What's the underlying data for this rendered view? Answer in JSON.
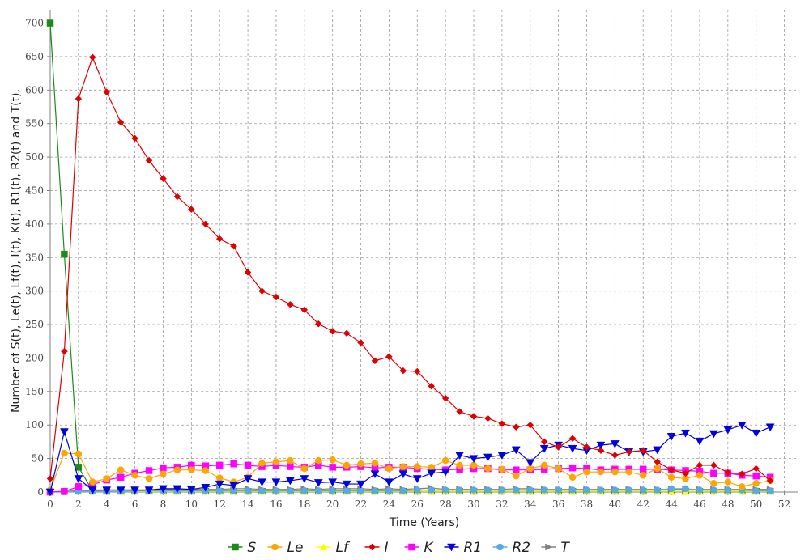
{
  "chart_data": {
    "type": "line",
    "xlabel": "Time (Years)",
    "ylabel": "Number of S(t), Le(t), Lf(t), I(t), K(t), R1(t), R2(t) and T(t),",
    "xlim": [
      0,
      53
    ],
    "ylim": [
      0,
      720
    ],
    "xticks": [
      0,
      2,
      4,
      6,
      8,
      10,
      12,
      14,
      16,
      18,
      20,
      22,
      24,
      26,
      28,
      30,
      32,
      34,
      36,
      38,
      40,
      42,
      44,
      46,
      48,
      50,
      52
    ],
    "yticks": [
      0,
      50,
      100,
      150,
      200,
      250,
      300,
      350,
      400,
      450,
      500,
      550,
      600,
      650,
      700
    ],
    "grid": true,
    "legend": "bottom",
    "x": [
      0,
      1,
      2,
      3,
      4,
      5,
      6,
      7,
      8,
      9,
      10,
      11,
      12,
      13,
      14,
      15,
      16,
      17,
      18,
      19,
      20,
      21,
      22,
      23,
      24,
      25,
      26,
      27,
      28,
      29,
      30,
      31,
      32,
      33,
      34,
      35,
      36,
      37,
      38,
      39,
      40,
      41,
      42,
      43,
      44,
      45,
      46,
      47,
      48,
      49,
      50,
      51
    ],
    "series": [
      {
        "name": "S",
        "color": "#1a8a1a",
        "marker": "square",
        "values": [
          700,
          355,
          37,
          2,
          1,
          1,
          1,
          1,
          1,
          1,
          1,
          1,
          1,
          1,
          1,
          1,
          1,
          1,
          1,
          1,
          1,
          1,
          1,
          1,
          1,
          1,
          1,
          1,
          1,
          1,
          1,
          1,
          1,
          1,
          1,
          1,
          1,
          1,
          1,
          1,
          1,
          1,
          1,
          1,
          1,
          1,
          1,
          1,
          1,
          1,
          1,
          1
        ]
      },
      {
        "name": "Le",
        "color": "#ffa500",
        "marker": "circle",
        "values": [
          3,
          58,
          57,
          15,
          20,
          33,
          25,
          20,
          27,
          33,
          33,
          32,
          21,
          15,
          22,
          43,
          45,
          47,
          35,
          47,
          48,
          40,
          42,
          43,
          35,
          38,
          38,
          37,
          47,
          40,
          40,
          35,
          34,
          24,
          35,
          40,
          35,
          22,
          30,
          30,
          30,
          30,
          25,
          35,
          22,
          20,
          25,
          13,
          15,
          8,
          13,
          17
        ]
      },
      {
        "name": "Lf",
        "color": "#ffff00",
        "marker": "triangle-up",
        "values": [
          0,
          1,
          1,
          1,
          1,
          1,
          1,
          1,
          1,
          1,
          1,
          1,
          1,
          1,
          1,
          1,
          1,
          1,
          1,
          1,
          1,
          1,
          1,
          1,
          1,
          1,
          1,
          1,
          1,
          1,
          1,
          1,
          1,
          1,
          1,
          1,
          1,
          1,
          1,
          1,
          1,
          1,
          1,
          1,
          1,
          1,
          1,
          1,
          1,
          1,
          1,
          1
        ]
      },
      {
        "name": "I",
        "color": "#e00000",
        "marker": "diamond",
        "values": [
          20,
          210,
          587,
          649,
          597,
          552,
          528,
          495,
          468,
          441,
          422,
          400,
          378,
          367,
          328,
          300,
          291,
          280,
          272,
          251,
          240,
          237,
          223,
          196,
          202,
          181,
          180,
          158,
          140,
          120,
          113,
          110,
          102,
          97,
          100,
          75,
          67,
          80,
          67,
          62,
          55,
          60,
          62,
          45,
          33,
          28,
          40,
          40,
          29,
          27,
          35,
          17
        ]
      },
      {
        "name": "K",
        "color": "#ff00ff",
        "marker": "square",
        "values": [
          0,
          1,
          8,
          11,
          18,
          22,
          28,
          32,
          36,
          37,
          40,
          39,
          40,
          42,
          40,
          38,
          40,
          38,
          37,
          40,
          37,
          37,
          38,
          36,
          37,
          37,
          35,
          34,
          33,
          34,
          35,
          35,
          33,
          33,
          33,
          34,
          35,
          36,
          35,
          33,
          34,
          34,
          34,
          34,
          33,
          32,
          31,
          28,
          28,
          25,
          24,
          22
        ]
      },
      {
        "name": "R1",
        "color": "#0000dd",
        "marker": "triangle-down",
        "values": [
          0,
          90,
          20,
          3,
          3,
          3,
          3,
          3,
          5,
          5,
          4,
          7,
          12,
          10,
          20,
          15,
          15,
          17,
          20,
          14,
          15,
          12,
          12,
          27,
          15,
          27,
          20,
          28,
          30,
          55,
          50,
          52,
          55,
          63,
          44,
          65,
          70,
          65,
          62,
          70,
          72,
          60,
          60,
          63,
          83,
          88,
          76,
          87,
          93,
          100,
          88,
          97
        ]
      },
      {
        "name": "R2",
        "color": "#5aa9e6",
        "marker": "circle",
        "values": [
          0,
          0,
          1,
          1,
          1,
          1,
          2,
          2,
          2,
          2,
          2,
          2,
          2,
          2,
          2,
          2,
          2,
          2,
          2,
          2,
          2,
          2,
          2,
          2,
          2,
          2,
          3,
          3,
          3,
          3,
          3,
          3,
          3,
          3,
          3,
          3,
          3,
          3,
          3,
          3,
          3,
          3,
          3,
          3,
          5,
          5,
          3,
          3,
          3,
          3,
          2,
          2
        ]
      },
      {
        "name": "T",
        "color": "#808080",
        "marker": "triangle-right",
        "values": [
          0,
          1,
          2,
          2,
          3,
          3,
          3,
          3,
          4,
          4,
          4,
          4,
          4,
          5,
          5,
          4,
          4,
          4,
          5,
          4,
          5,
          5,
          5,
          4,
          5,
          4,
          5,
          6,
          4,
          4,
          4,
          4,
          4,
          5,
          5,
          4,
          4,
          4,
          4,
          4,
          4,
          4,
          4,
          4,
          4,
          4,
          4,
          4,
          4,
          4,
          4,
          4
        ]
      }
    ]
  }
}
